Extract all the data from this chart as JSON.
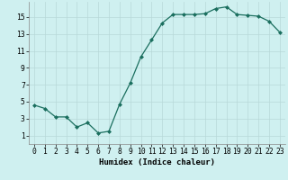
{
  "x": [
    0,
    1,
    2,
    3,
    4,
    5,
    6,
    7,
    8,
    9,
    10,
    11,
    12,
    13,
    14,
    15,
    16,
    17,
    18,
    19,
    20,
    21,
    22,
    23
  ],
  "y": [
    4.6,
    4.2,
    3.2,
    3.2,
    2.0,
    2.5,
    1.3,
    1.5,
    4.7,
    7.2,
    10.3,
    12.3,
    14.3,
    15.3,
    15.3,
    15.3,
    15.4,
    16.0,
    16.2,
    15.3,
    15.2,
    15.1,
    14.5,
    13.2
  ],
  "line_color": "#1a6e5e",
  "marker": "D",
  "marker_size": 2,
  "bg_color": "#cff0f0",
  "grid_color": "#b8d8d8",
  "xlabel": "Humidex (Indice chaleur)",
  "xlim": [
    -0.5,
    23.5
  ],
  "ylim": [
    0,
    16.8
  ],
  "xticks": [
    0,
    1,
    2,
    3,
    4,
    5,
    6,
    7,
    8,
    9,
    10,
    11,
    12,
    13,
    14,
    15,
    16,
    17,
    18,
    19,
    20,
    21,
    22,
    23
  ],
  "yticks": [
    1,
    3,
    5,
    7,
    9,
    11,
    13,
    15
  ],
  "xlabel_fontsize": 6.5,
  "tick_fontsize": 5.8
}
